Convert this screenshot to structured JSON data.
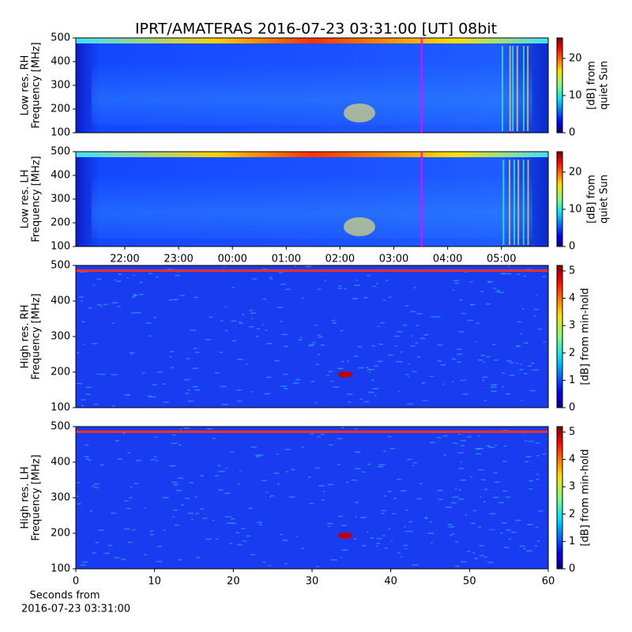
{
  "title": "IPRT/AMATERAS 2016-07-23 03:31:00 [UT]   08bit",
  "chart_data": [
    {
      "type": "heatmap",
      "ylabel": [
        "Low res. RH",
        "Frequency [MHz]"
      ],
      "ylim": [
        100,
        500
      ],
      "yticks": [
        100,
        200,
        300,
        400,
        500
      ],
      "xlim": [
        21.09,
        29.87
      ],
      "marker_x": 27.517,
      "marker_color": "#ff00ff",
      "colorbar_label": [
        "[dB] from",
        "quiet Sun"
      ],
      "clim": [
        0,
        25.5
      ],
      "cticks": [
        0,
        10,
        20
      ]
    },
    {
      "type": "heatmap",
      "ylabel": [
        "Low res. LH",
        "Frequency [MHz]"
      ],
      "ylim": [
        100,
        500
      ],
      "yticks": [
        100,
        200,
        300,
        400,
        500
      ],
      "xlim": [
        21.09,
        29.87
      ],
      "marker_x": 27.517,
      "marker_color": "#ff00ff",
      "xticks": [
        {
          "value": 22,
          "label": "22:00"
        },
        {
          "value": 23,
          "label": "23:00"
        },
        {
          "value": 24,
          "label": "00:00"
        },
        {
          "value": 25,
          "label": "01:00"
        },
        {
          "value": 26,
          "label": "02:00"
        },
        {
          "value": 27,
          "label": "03:00"
        },
        {
          "value": 28,
          "label": "04:00"
        },
        {
          "value": 29,
          "label": "05:00"
        }
      ],
      "xticks_top": true,
      "colorbar_label": [
        "[dB] from",
        "quiet Sun"
      ],
      "clim": [
        0,
        25.5
      ],
      "cticks": [
        0,
        10,
        20
      ]
    },
    {
      "type": "heatmap",
      "ylabel": [
        "High res. RH",
        "Frequency [MHz]"
      ],
      "ylim": [
        100,
        500
      ],
      "yticks": [
        100,
        200,
        300,
        400,
        500
      ],
      "xlim": [
        0,
        60
      ],
      "colorbar_label": [
        "[dB] from min-hold"
      ],
      "clim": [
        0,
        5.2
      ],
      "cticks": [
        0,
        1,
        2,
        3,
        4,
        5
      ]
    },
    {
      "type": "heatmap",
      "ylabel": [
        "High res. LH",
        "Frequency [MHz]"
      ],
      "ylim": [
        100,
        500
      ],
      "yticks": [
        100,
        200,
        300,
        400,
        500
      ],
      "xlim": [
        0,
        60
      ],
      "xticks": [
        0,
        10,
        20,
        30,
        40,
        50,
        60
      ],
      "xlabel": [
        "Seconds from",
        "2016-07-23 03:31:00"
      ],
      "colorbar_label": [
        "[dB] from min-hold"
      ],
      "clim": [
        0,
        5.2
      ],
      "cticks": [
        0,
        1,
        2,
        3,
        4,
        5
      ]
    }
  ]
}
